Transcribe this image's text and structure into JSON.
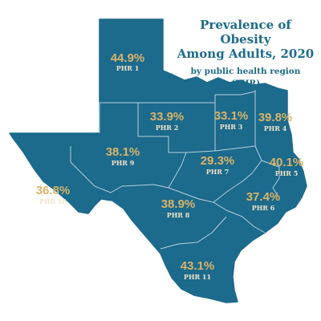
{
  "title_line1": "Prevalence of Obesity",
  "title_line2": "Among Adults, 2020",
  "subtitle_line1": "by public health region",
  "subtitle_line2": "(PHR)",
  "colors": {
    "state_fill": "#1c6a8c",
    "border": "#b7cfdb",
    "title": "#1d6b8c",
    "value_label": "#d9b46a",
    "region_label": "#f1e4c8"
  },
  "regions": [
    {
      "id": "phr-1",
      "name": "PHR 1",
      "value": "44.9%"
    },
    {
      "id": "phr-2",
      "name": "PHR 2",
      "value": "33.9%"
    },
    {
      "id": "phr-3",
      "name": "PHR 3",
      "value": "33.1%"
    },
    {
      "id": "phr-4",
      "name": "PHR 4",
      "value": "39.8%"
    },
    {
      "id": "phr-5",
      "name": "PHR 5",
      "value": "40.1%"
    },
    {
      "id": "phr-6",
      "name": "PHR 6",
      "value": "37.4%"
    },
    {
      "id": "phr-7",
      "name": "PHR 7",
      "value": "29.3%"
    },
    {
      "id": "phr-8",
      "name": "PHR 8",
      "value": "38.9%"
    },
    {
      "id": "phr-9",
      "name": "PHR 9",
      "value": "38.1%"
    },
    {
      "id": "phr-10",
      "name": "PHR 10",
      "value": "36.8%"
    },
    {
      "id": "phr-11",
      "name": "PHR 11",
      "value": "43.1%"
    }
  ]
}
